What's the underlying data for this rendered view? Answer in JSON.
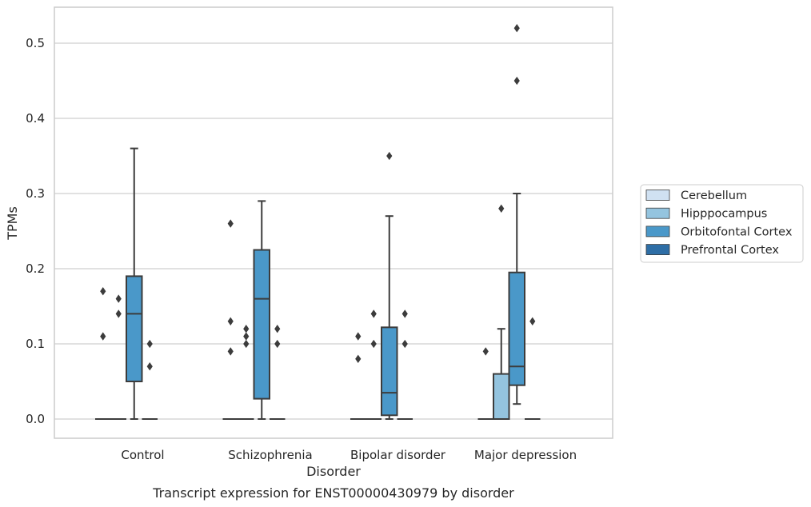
{
  "chart_data": {
    "type": "box",
    "title": "",
    "caption": "Transcript expression for ENST00000430979 by disorder",
    "xlabel": "Disorder",
    "ylabel": "TPMs",
    "ylim": [
      -0.025,
      0.545
    ],
    "yticks": [
      "0.0",
      "0.1",
      "0.2",
      "0.3",
      "0.4",
      "0.5"
    ],
    "grid": true,
    "legend_position": "right",
    "categories": [
      "Control",
      "Schizophrenia",
      "Bipolar disorder",
      "Major depression"
    ],
    "series": [
      {
        "name": "Cerebellum",
        "color": "#d0e1f2",
        "boxes": [
          {
            "q1": 0,
            "median": 0,
            "q3": 0,
            "whislo": 0,
            "whishi": 0,
            "fliers": [
              0.17,
              0.11
            ]
          },
          {
            "q1": 0,
            "median": 0,
            "q3": 0,
            "whislo": 0,
            "whishi": 0,
            "fliers": [
              0.26,
              0.13,
              0.09
            ]
          },
          {
            "q1": 0,
            "median": 0,
            "q3": 0,
            "whislo": 0,
            "whishi": 0,
            "fliers": [
              0.11,
              0.08
            ]
          },
          {
            "q1": 0,
            "median": 0,
            "q3": 0,
            "whislo": 0,
            "whishi": 0,
            "fliers": [
              0.09
            ]
          }
        ]
      },
      {
        "name": "Hipppocampus",
        "color": "#94c4df",
        "boxes": [
          {
            "q1": 0,
            "median": 0,
            "q3": 0,
            "whislo": 0,
            "whishi": 0,
            "fliers": [
              0.16,
              0.14
            ]
          },
          {
            "q1": 0,
            "median": 0,
            "q3": 0,
            "whislo": 0,
            "whishi": 0,
            "fliers": [
              0.12,
              0.11,
              0.1
            ]
          },
          {
            "q1": 0,
            "median": 0,
            "q3": 0,
            "whislo": 0,
            "whishi": 0,
            "fliers": [
              0.14,
              0.1
            ]
          },
          {
            "q1": 0,
            "median": 0,
            "q3": 0.06,
            "whislo": 0,
            "whishi": 0.12,
            "fliers": [
              0.28
            ]
          }
        ]
      },
      {
        "name": "Orbitofontal Cortex",
        "color": "#4a98c9",
        "boxes": [
          {
            "q1": 0.05,
            "median": 0.14,
            "q3": 0.19,
            "whislo": 0,
            "whishi": 0.36,
            "fliers": []
          },
          {
            "q1": 0.027,
            "median": 0.16,
            "q3": 0.225,
            "whislo": 0,
            "whishi": 0.29,
            "fliers": []
          },
          {
            "q1": 0.005,
            "median": 0.035,
            "q3": 0.122,
            "whislo": 0,
            "whishi": 0.27,
            "fliers": [
              0.35
            ]
          },
          {
            "q1": 0.045,
            "median": 0.07,
            "q3": 0.195,
            "whislo": 0.02,
            "whishi": 0.3,
            "fliers": [
              0.45,
              0.52
            ]
          }
        ]
      },
      {
        "name": "Prefrontal Cortex",
        "color": "#2e6ea6",
        "boxes": [
          {
            "q1": 0,
            "median": 0,
            "q3": 0,
            "whislo": 0,
            "whishi": 0,
            "fliers": [
              0.1,
              0.07
            ]
          },
          {
            "q1": 0,
            "median": 0,
            "q3": 0,
            "whislo": 0,
            "whishi": 0,
            "fliers": [
              0.12,
              0.1
            ]
          },
          {
            "q1": 0,
            "median": 0,
            "q3": 0,
            "whislo": 0,
            "whishi": 0,
            "fliers": [
              0.14,
              0.1
            ]
          },
          {
            "q1": 0,
            "median": 0,
            "q3": 0,
            "whislo": 0,
            "whishi": 0,
            "fliers": [
              0.13
            ]
          }
        ]
      }
    ]
  }
}
